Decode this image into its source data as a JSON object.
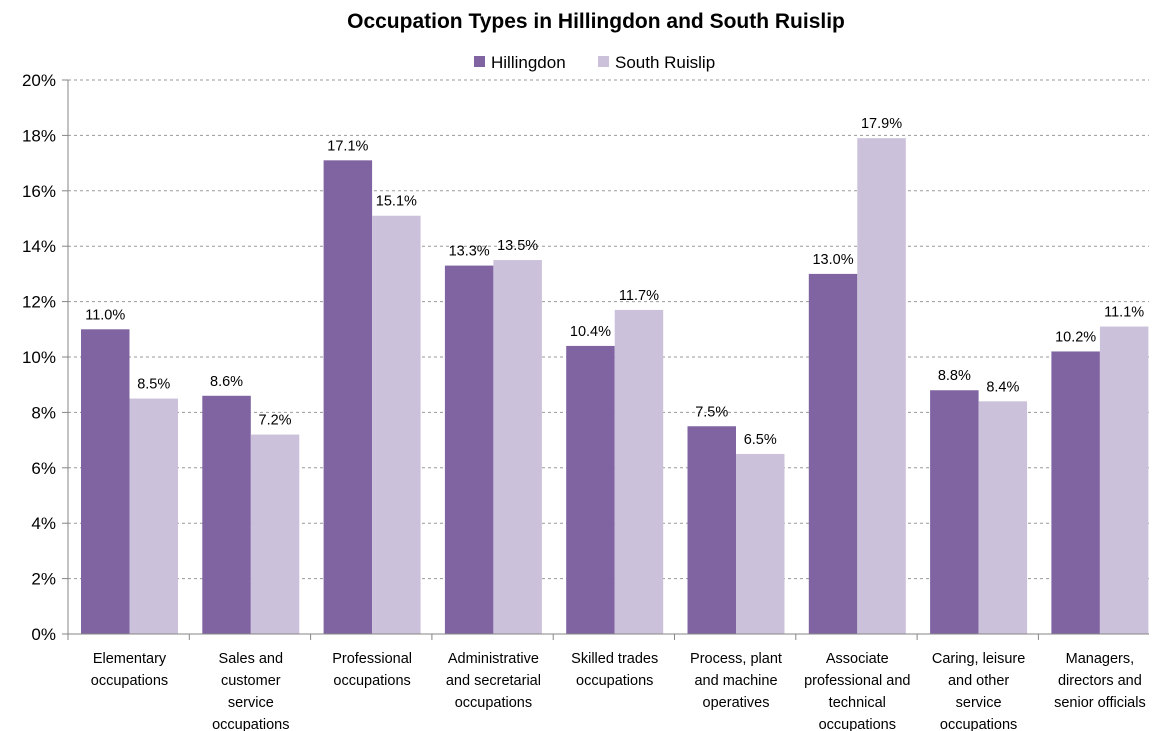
{
  "chart_data": {
    "type": "bar",
    "title": "Occupation Types in Hillingdon and South Ruislip",
    "categories": [
      [
        "Elementary",
        "occupations"
      ],
      [
        "Sales and",
        "customer",
        "service",
        "occupations"
      ],
      [
        "Professional",
        "occupations"
      ],
      [
        "Administrative",
        "and secretarial",
        "occupations"
      ],
      [
        "Skilled trades",
        "occupations"
      ],
      [
        "Process, plant",
        "and machine",
        "operatives"
      ],
      [
        "Associate",
        "professional and",
        "technical",
        "occupations"
      ],
      [
        "Caring, leisure",
        "and other",
        "service",
        "occupations"
      ],
      [
        "Managers,",
        "directors and",
        "senior officials"
      ]
    ],
    "series": [
      {
        "name": "Hillingdon",
        "color": "#8064a2",
        "values": [
          11.0,
          8.6,
          17.1,
          13.3,
          10.4,
          7.5,
          13.0,
          8.8,
          10.2
        ],
        "labels": [
          "11.0%",
          "8.6%",
          "17.1%",
          "13.3%",
          "10.4%",
          "7.5%",
          "13.0%",
          "8.8%",
          "10.2%"
        ]
      },
      {
        "name": "South Ruislip",
        "color": "#ccc1da",
        "values": [
          8.5,
          7.2,
          15.1,
          13.5,
          11.7,
          6.5,
          17.9,
          8.4,
          11.1
        ],
        "labels": [
          "8.5%",
          "7.2%",
          "15.1%",
          "13.5%",
          "11.7%",
          "6.5%",
          "17.9%",
          "8.4%",
          "11.1%"
        ]
      }
    ],
    "ylim": [
      0,
      20
    ],
    "yticks": [
      0,
      2,
      4,
      6,
      8,
      10,
      12,
      14,
      16,
      18,
      20
    ],
    "ytick_labels": [
      "0%",
      "2%",
      "4%",
      "6%",
      "8%",
      "10%",
      "12%",
      "14%",
      "16%",
      "18%",
      "20%"
    ],
    "legend_position": "top",
    "grid": true
  }
}
